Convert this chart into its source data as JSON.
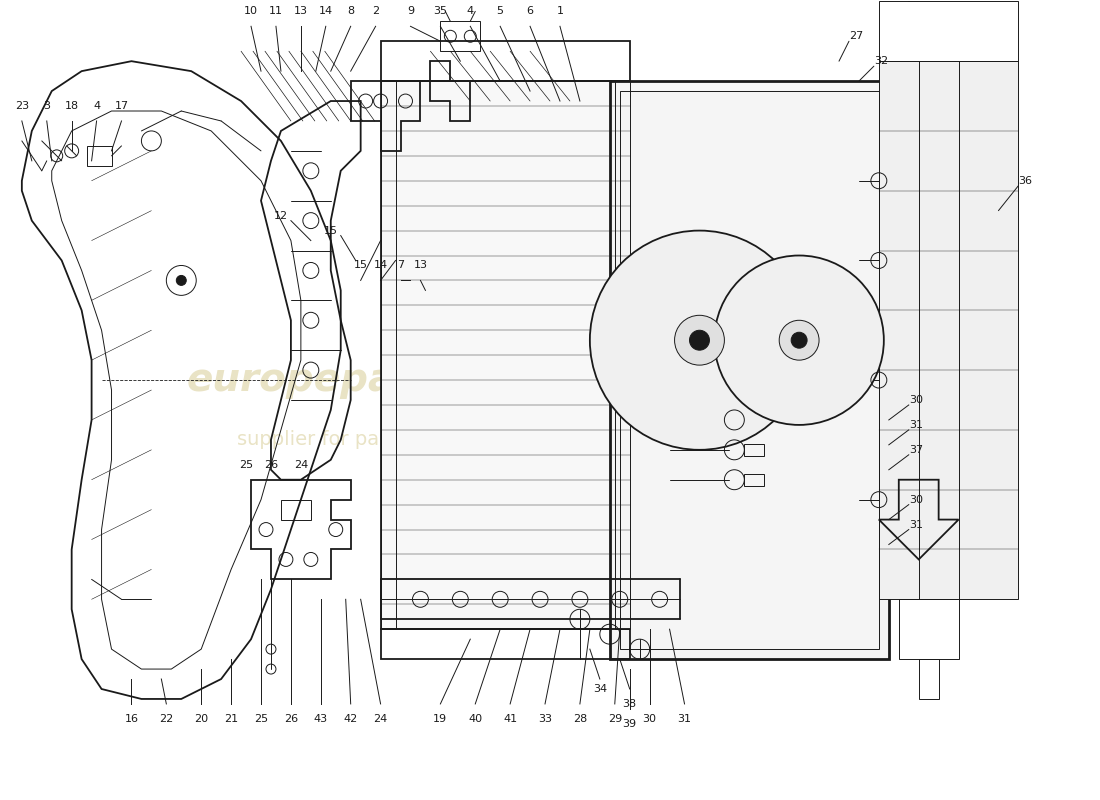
{
  "bg_color": "#ffffff",
  "line_color": "#1a1a1a",
  "wm_color": "#c8b96e",
  "wm_alpha": 0.4,
  "lw_main": 1.3,
  "lw_thin": 0.7,
  "lw_thick": 2.0,
  "label_fs": 8,
  "figsize": [
    11.0,
    8.0
  ],
  "dpi": 100
}
